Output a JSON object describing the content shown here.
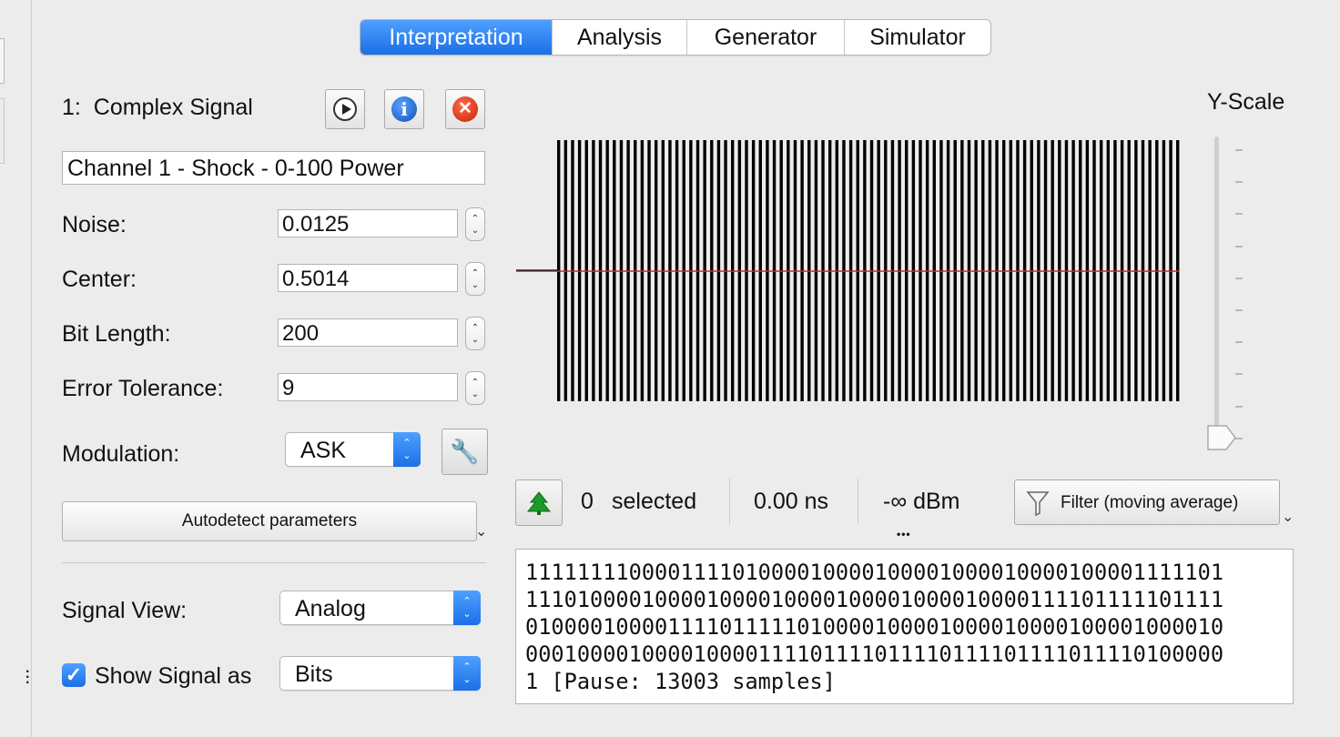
{
  "tabs": [
    {
      "label": "Interpretation",
      "active": true
    },
    {
      "label": "Analysis",
      "active": false
    },
    {
      "label": "Generator",
      "active": false
    },
    {
      "label": "Simulator",
      "active": false
    }
  ],
  "signal": {
    "number_label": "1:",
    "title": "Complex Signal",
    "name": "Channel 1 - Shock - 0-100 Power"
  },
  "params": {
    "noise_label": "Noise:",
    "noise_value": "0.0125",
    "center_label": "Center:",
    "center_value": "0.5014",
    "bit_length_label": "Bit Length:",
    "bit_length_value": "200",
    "error_tolerance_label": "Error Tolerance:",
    "error_tolerance_value": "9",
    "modulation_label": "Modulation:",
    "modulation_value": "ASK"
  },
  "autodetect_label": "Autodetect parameters",
  "signal_view": {
    "label": "Signal View:",
    "value": "Analog"
  },
  "show_signal": {
    "checked": true,
    "label": "Show Signal as",
    "value": "Bits"
  },
  "y_scale_label": "Y-Scale",
  "y_scale_level": 0.0,
  "status": {
    "selected_count": "0",
    "selected_label": "selected",
    "duration": "0.00 ns",
    "power": "-∞ dBm",
    "filter_label": "Filter (moving average)"
  },
  "bits_lines": [
    "111111110000111101000010000100001000010000100001111101",
    "111010000100001000010000100001000010000111101111101111",
    "010000100001111011111010000100001000010000100001000010",
    "000100001000010000111101111011110111101111011110100000",
    "1 [Pause: 13003 samples]"
  ],
  "colors": {
    "accent": "#1c6fe6",
    "signal": "#000000",
    "center_line": "#c03030"
  },
  "icons": {
    "play": "play-icon",
    "info": "info-icon",
    "close": "close-icon",
    "wrench": "wrench-icon",
    "green_triangle": "green-tree-icon",
    "filter": "funnel-icon"
  }
}
